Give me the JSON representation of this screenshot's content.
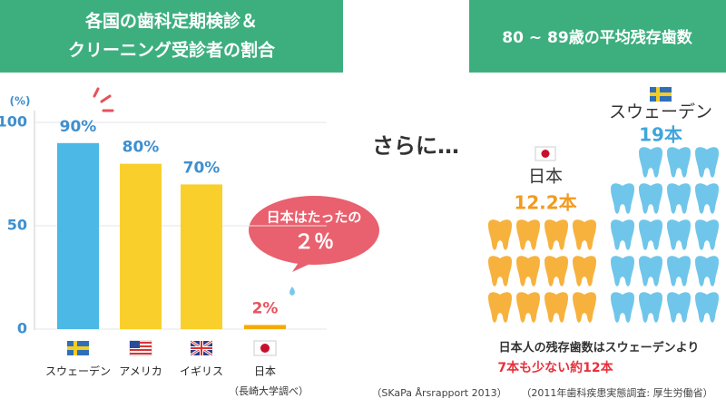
{
  "chart_data": [
    {
      "type": "bar",
      "title": [
        "各国の歯科定期検診＆",
        "クリーニング受診者の割合"
      ],
      "y_label": "(%)",
      "categories": [
        "スウェーデン",
        "アメリカ",
        "イギリス",
        "日本"
      ],
      "values": [
        90,
        80,
        70,
        2
      ],
      "value_labels": [
        "90%",
        "80%",
        "70%",
        "2%"
      ],
      "colors": [
        "#4cb8e6",
        "#f9cf2c",
        "#f9cf2c",
        "#f3ab00"
      ],
      "label_colors": [
        "#3f8fcf",
        "#3f8fcf",
        "#3f8fcf",
        "#e9525c"
      ],
      "ylim": [
        0,
        100
      ],
      "yticks": [
        0,
        50,
        100
      ],
      "grid": true,
      "annotation": [
        "日本はたったの",
        "２％"
      ],
      "note": "（長崎大学調べ）"
    },
    {
      "type": "pictogram",
      "title": "80 ~ 89歳の平均残存歯数",
      "categories": [
        "日本",
        "スウェーデン"
      ],
      "values": [
        12.2,
        19
      ],
      "value_labels": [
        "12.2本",
        "19本"
      ],
      "colors": [
        "#f7b23e",
        "#6fc6ea"
      ],
      "label_colors": [
        "#f29a1f",
        "#3fa6dc"
      ]
    }
  ],
  "intro": "さらに…",
  "summary": [
    "日本人の残存歯数はスウェーデンより",
    "7本も少ない約12本"
  ],
  "sources": [
    "（SKaPa Årsrapport 2013）",
    "（2011年歯科疾患実態調査: 厚生労働省）"
  ]
}
